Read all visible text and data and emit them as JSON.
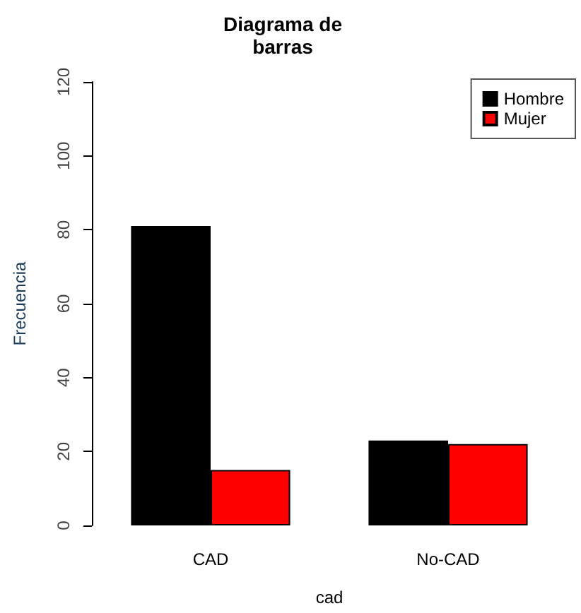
{
  "chart_data": {
    "type": "bar",
    "title": "Diagrama de\nbarras",
    "xlabel": "cad",
    "ylabel": "Frecuencia",
    "categories": [
      "CAD",
      "No-CAD"
    ],
    "series": [
      {
        "name": "Hombre",
        "color": "#000000",
        "values": [
          81,
          23
        ]
      },
      {
        "name": "Mujer",
        "color": "#ff0000",
        "values": [
          15,
          22
        ]
      }
    ],
    "ylim": [
      0,
      120
    ],
    "yticks": [
      0,
      20,
      40,
      60,
      80,
      100,
      120
    ],
    "grid": false,
    "legend": "top right"
  }
}
